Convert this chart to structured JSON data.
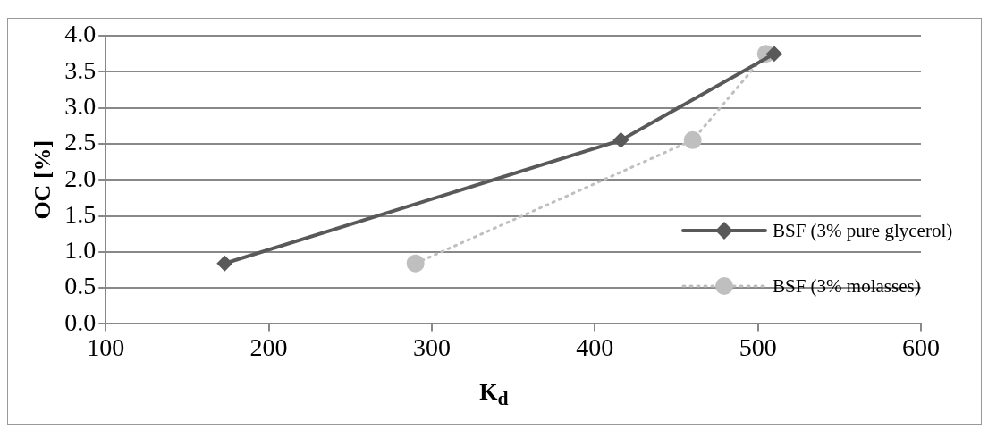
{
  "chart_data": {
    "type": "line",
    "xlabel": "K$_{d}$",
    "ylabel": "OC [%]",
    "xlim": [
      100,
      600
    ],
    "xticks": [
      100,
      200,
      300,
      400,
      500,
      600
    ],
    "ylim": [
      0,
      4
    ],
    "yticks": [
      {
        "value": 0,
        "label": "0.0"
      },
      {
        "value": 0.5,
        "label": "0.5"
      },
      {
        "value": 1,
        "label": "1.0"
      },
      {
        "value": 1.5,
        "label": "1.5"
      },
      {
        "value": 2,
        "label": "2.0"
      },
      {
        "value": 2.5,
        "label": "2.5"
      },
      {
        "value": 3,
        "label": "3.0"
      },
      {
        "value": 3.5,
        "label": "3.5"
      },
      {
        "value": 4,
        "label": "4.0"
      }
    ],
    "grid": "y",
    "legend": "right",
    "series": [
      {
        "name": "BSF (3% pure glycerol)",
        "color": "#595959",
        "marker": "diamond",
        "line_style": "solid",
        "x": [
          173,
          416,
          510
        ],
        "values": [
          0.84,
          2.55,
          3.75
        ]
      },
      {
        "name": "BSF (3% molasses)",
        "color": "#bfbfbf",
        "marker": "circle",
        "line_style": "dotted",
        "x": [
          290,
          460,
          505
        ],
        "values": [
          0.84,
          2.55,
          3.75
        ]
      }
    ]
  }
}
